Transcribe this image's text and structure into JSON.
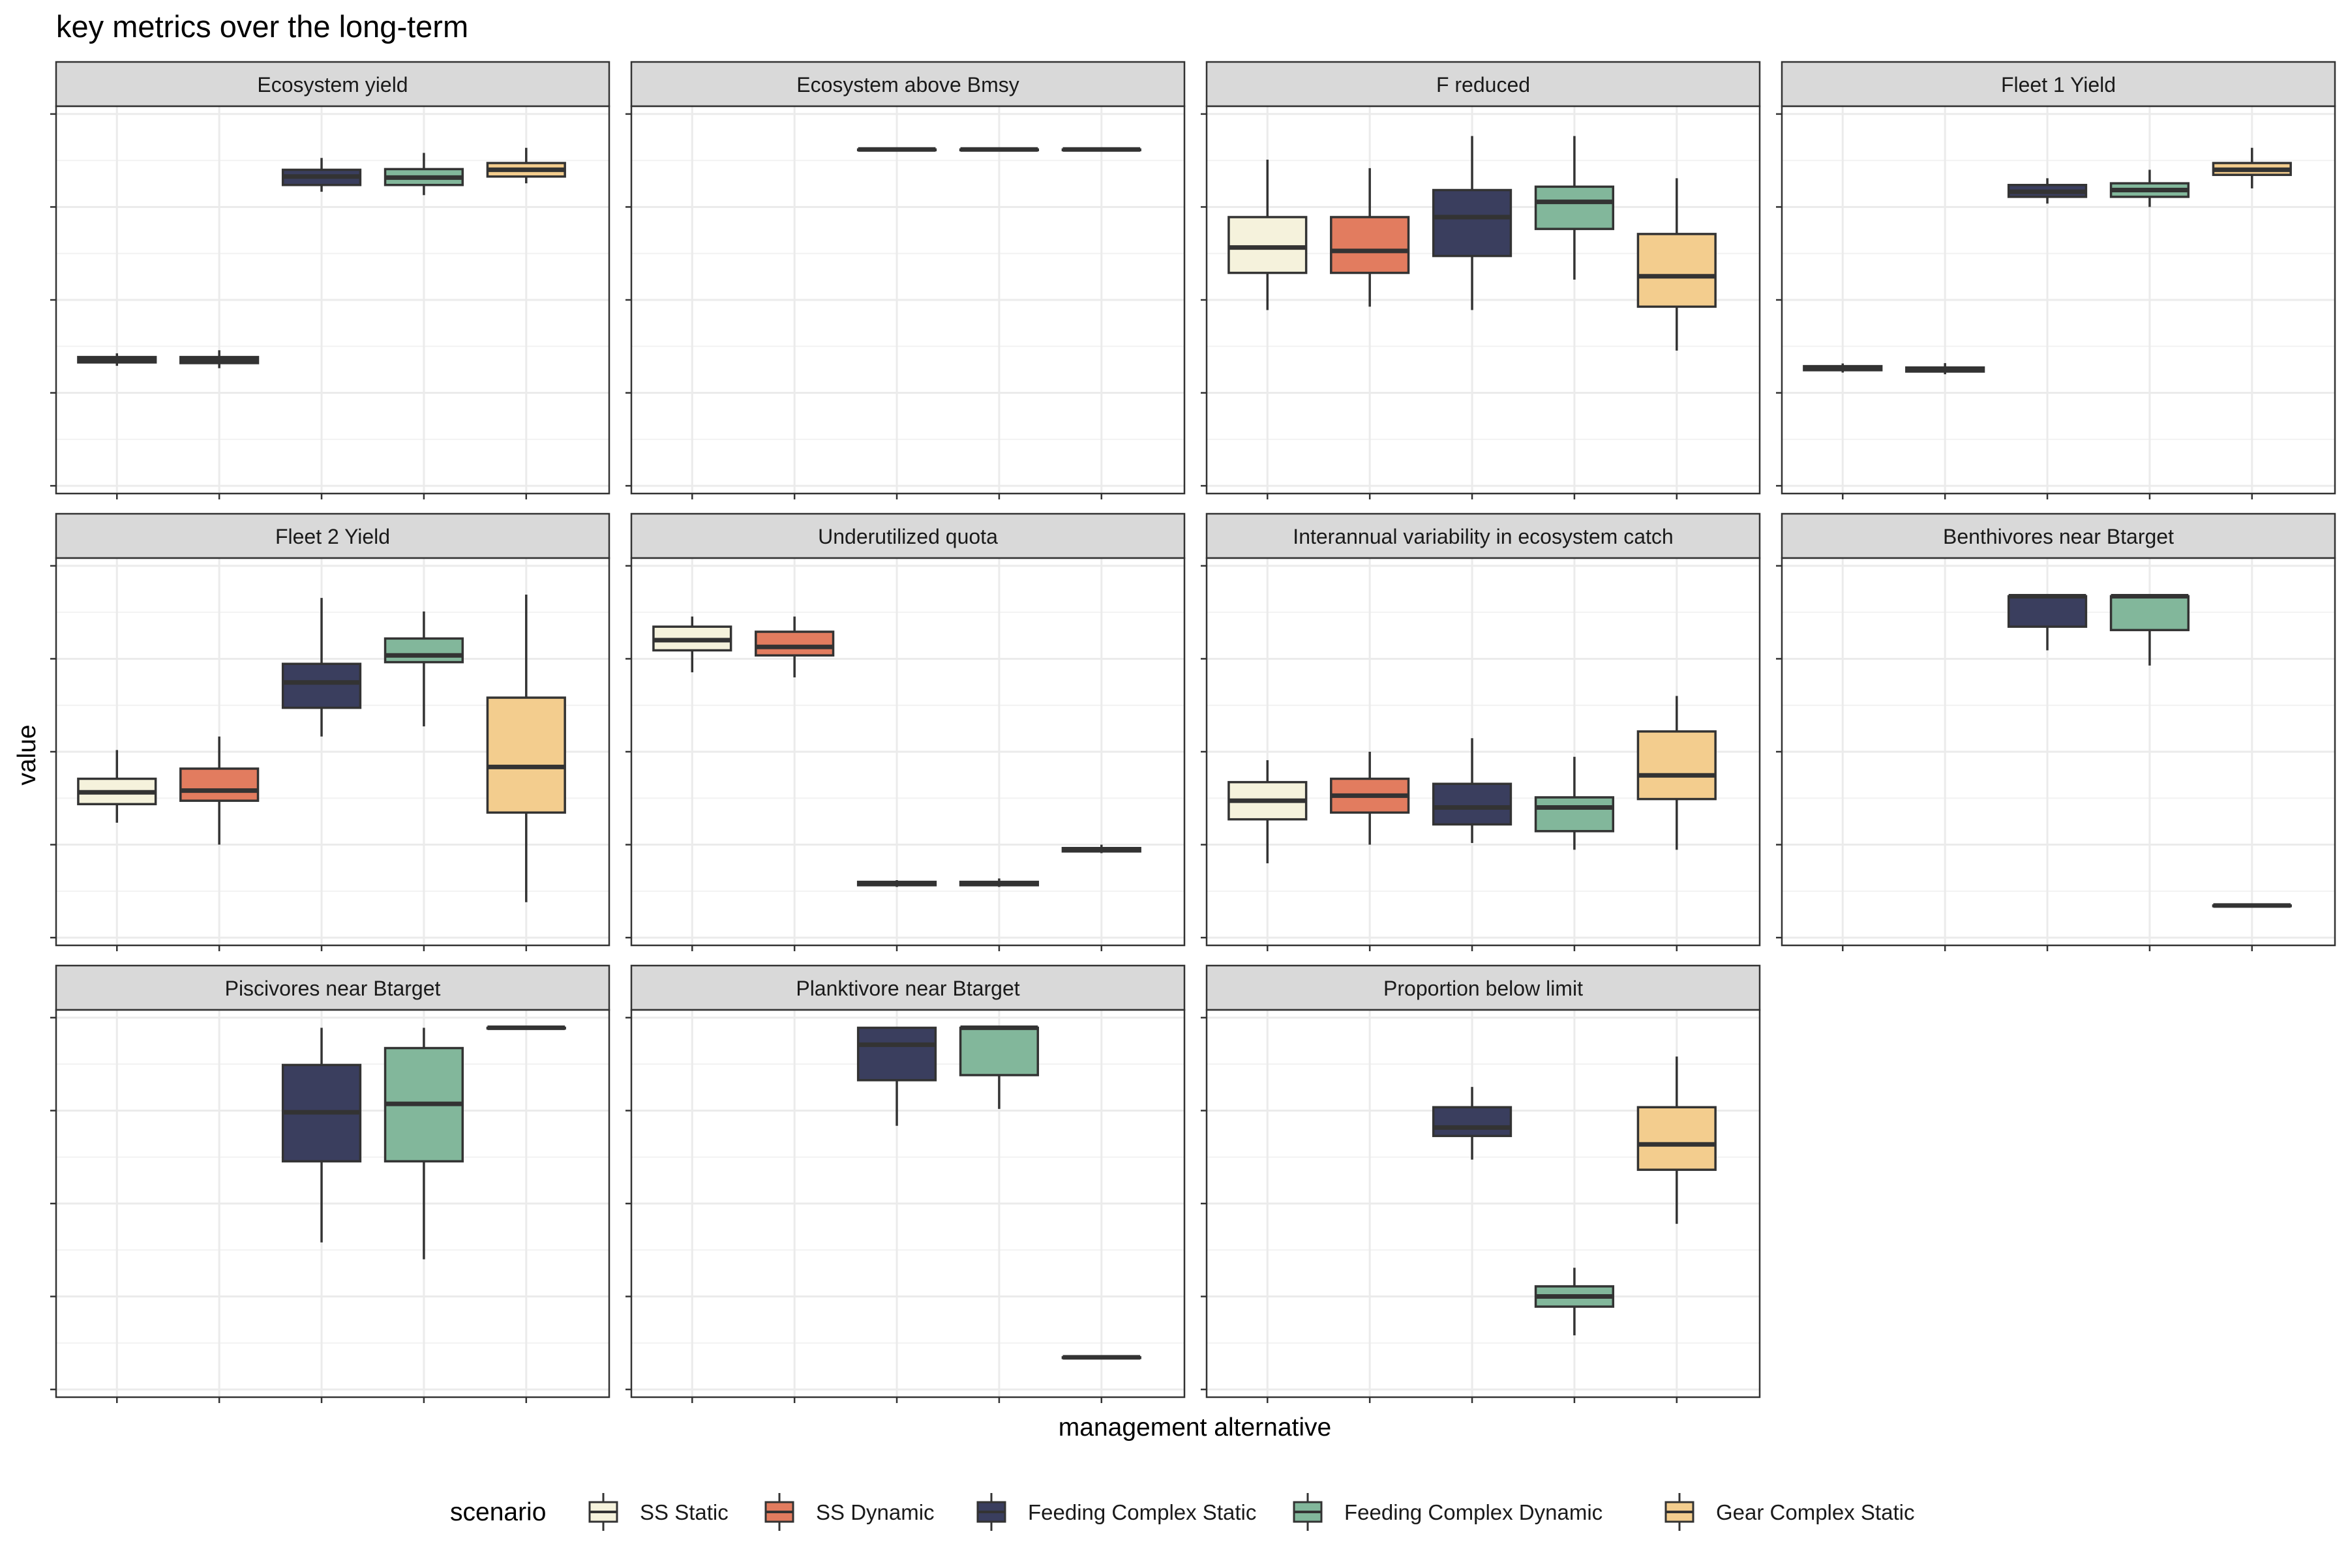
{
  "chart_data": {
    "type": "boxplot",
    "title": "key metrics over the long-term",
    "xlabel": "management alternative",
    "ylabel": "value",
    "x_tick_labels_shown": false,
    "y_tick_labels_shown": false,
    "grid": true,
    "facet_layout": {
      "nrow": 3,
      "ncol": 4
    },
    "legend": {
      "title": "scenario",
      "position": "bottom",
      "entries": [
        {
          "name": "SS Static",
          "color": "#F5F2DC"
        },
        {
          "name": "SS Dynamic",
          "color": "#E27C5F"
        },
        {
          "name": "Feeding Complex Static",
          "color": "#3A3E5E"
        },
        {
          "name": "Feeding Complex Dynamic",
          "color": "#82B79B"
        },
        {
          "name": "Gear Complex Static",
          "color": "#F3CD8E"
        }
      ]
    },
    "value_scale": "relative within each panel (0 = panel bottom, 1 = panel top); panels have no printed y tick values",
    "facets": [
      {
        "label": "Ecosystem yield",
        "boxes": [
          {
            "scenario": "SS Static",
            "min": 0.305,
            "q1": 0.315,
            "median": 0.322,
            "q3": 0.331,
            "max": 0.342
          },
          {
            "scenario": "SS Dynamic",
            "min": 0.298,
            "q1": 0.313,
            "median": 0.322,
            "q3": 0.331,
            "max": 0.351
          },
          {
            "scenario": "Feeding Complex Static",
            "min": 0.82,
            "q1": 0.84,
            "median": 0.865,
            "q3": 0.885,
            "max": 0.92
          },
          {
            "scenario": "Feeding Complex Dynamic",
            "min": 0.81,
            "q1": 0.84,
            "median": 0.862,
            "q3": 0.887,
            "max": 0.935
          },
          {
            "scenario": "Gear Complex Static",
            "min": 0.845,
            "q1": 0.865,
            "median": 0.885,
            "q3": 0.905,
            "max": 0.95
          }
        ]
      },
      {
        "label": "Ecosystem above Bmsy",
        "boxes": [
          {
            "scenario": "Feeding Complex Static",
            "min": 0.945,
            "q1": 0.945,
            "median": 0.945,
            "q3": 0.945,
            "max": 0.945
          },
          {
            "scenario": "Feeding Complex Dynamic",
            "min": 0.945,
            "q1": 0.945,
            "median": 0.945,
            "q3": 0.945,
            "max": 0.945
          },
          {
            "scenario": "Gear Complex Static",
            "min": 0.945,
            "q1": 0.945,
            "median": 0.945,
            "q3": 0.945,
            "max": 0.945
          }
        ]
      },
      {
        "label": "F reduced",
        "boxes": [
          {
            "scenario": "SS Static",
            "min": 0.47,
            "q1": 0.58,
            "median": 0.655,
            "q3": 0.745,
            "max": 0.915
          },
          {
            "scenario": "SS Dynamic",
            "min": 0.48,
            "q1": 0.58,
            "median": 0.645,
            "q3": 0.745,
            "max": 0.89
          },
          {
            "scenario": "Feeding Complex Static",
            "min": 0.47,
            "q1": 0.63,
            "median": 0.745,
            "q3": 0.825,
            "max": 0.985
          },
          {
            "scenario": "Feeding Complex Dynamic",
            "min": 0.56,
            "q1": 0.71,
            "median": 0.79,
            "q3": 0.835,
            "max": 0.985
          },
          {
            "scenario": "Gear Complex Static",
            "min": 0.35,
            "q1": 0.48,
            "median": 0.57,
            "q3": 0.695,
            "max": 0.86
          }
        ]
      },
      {
        "label": "Fleet 1 Yield",
        "boxes": [
          {
            "scenario": "SS Static",
            "min": 0.285,
            "q1": 0.292,
            "median": 0.298,
            "q3": 0.304,
            "max": 0.312
          },
          {
            "scenario": "SS Dynamic",
            "min": 0.28,
            "q1": 0.288,
            "median": 0.293,
            "q3": 0.3,
            "max": 0.313
          },
          {
            "scenario": "Feeding Complex Static",
            "min": 0.785,
            "q1": 0.805,
            "median": 0.82,
            "q3": 0.84,
            "max": 0.86
          },
          {
            "scenario": "Feeding Complex Dynamic",
            "min": 0.775,
            "q1": 0.805,
            "median": 0.825,
            "q3": 0.845,
            "max": 0.885
          },
          {
            "scenario": "Gear Complex Static",
            "min": 0.83,
            "q1": 0.87,
            "median": 0.885,
            "q3": 0.905,
            "max": 0.95
          }
        ]
      },
      {
        "label": "Fleet 2 Yield",
        "boxes": [
          {
            "scenario": "SS Static",
            "min": 0.29,
            "q1": 0.345,
            "median": 0.38,
            "q3": 0.42,
            "max": 0.505
          },
          {
            "scenario": "SS Dynamic",
            "min": 0.225,
            "q1": 0.355,
            "median": 0.385,
            "q3": 0.45,
            "max": 0.545
          },
          {
            "scenario": "Feeding Complex Static",
            "min": 0.545,
            "q1": 0.63,
            "median": 0.705,
            "q3": 0.76,
            "max": 0.955
          },
          {
            "scenario": "Feeding Complex Dynamic",
            "min": 0.575,
            "q1": 0.765,
            "median": 0.785,
            "q3": 0.835,
            "max": 0.915
          },
          {
            "scenario": "Gear Complex Static",
            "min": 0.055,
            "q1": 0.32,
            "median": 0.455,
            "q3": 0.66,
            "max": 0.965
          }
        ]
      },
      {
        "label": "Underutilized quota",
        "boxes": [
          {
            "scenario": "SS Static",
            "min": 0.735,
            "q1": 0.8,
            "median": 0.83,
            "q3": 0.87,
            "max": 0.9
          },
          {
            "scenario": "SS Dynamic",
            "min": 0.72,
            "q1": 0.785,
            "median": 0.81,
            "q3": 0.855,
            "max": 0.9
          },
          {
            "scenario": "Feeding Complex Static",
            "min": 0.1,
            "q1": 0.105,
            "median": 0.11,
            "q3": 0.115,
            "max": 0.12
          },
          {
            "scenario": "Feeding Complex Dynamic",
            "min": 0.1,
            "q1": 0.105,
            "median": 0.11,
            "q3": 0.115,
            "max": 0.125
          },
          {
            "scenario": "Gear Complex Static",
            "min": 0.2,
            "q1": 0.205,
            "median": 0.21,
            "q3": 0.215,
            "max": 0.225
          }
        ]
      },
      {
        "label": "Interannual variability in ecosystem catch",
        "boxes": [
          {
            "scenario": "SS Static",
            "min": 0.17,
            "q1": 0.3,
            "median": 0.355,
            "q3": 0.41,
            "max": 0.475
          },
          {
            "scenario": "SS Dynamic",
            "min": 0.225,
            "q1": 0.32,
            "median": 0.37,
            "q3": 0.42,
            "max": 0.5
          },
          {
            "scenario": "Feeding Complex Static",
            "min": 0.23,
            "q1": 0.285,
            "median": 0.335,
            "q3": 0.405,
            "max": 0.54
          },
          {
            "scenario": "Feeding Complex Dynamic",
            "min": 0.21,
            "q1": 0.265,
            "median": 0.335,
            "q3": 0.365,
            "max": 0.485
          },
          {
            "scenario": "Gear Complex Static",
            "min": 0.21,
            "q1": 0.36,
            "median": 0.43,
            "q3": 0.56,
            "max": 0.665
          }
        ]
      },
      {
        "label": "Benthivores near Btarget",
        "boxes": [
          {
            "scenario": "Feeding Complex Static",
            "min": 0.8,
            "q1": 0.87,
            "median": 0.96,
            "q3": 0.96,
            "max": 0.96
          },
          {
            "scenario": "Feeding Complex Dynamic",
            "min": 0.755,
            "q1": 0.86,
            "median": 0.96,
            "q3": 0.96,
            "max": 0.96
          },
          {
            "scenario": "Gear Complex Static",
            "min": 0.045,
            "q1": 0.045,
            "median": 0.045,
            "q3": 0.045,
            "max": 0.045
          }
        ]
      },
      {
        "label": "Piscivores near Btarget",
        "boxes": [
          {
            "scenario": "Feeding Complex Static",
            "min": 0.385,
            "q1": 0.625,
            "median": 0.77,
            "q3": 0.91,
            "max": 1.02
          },
          {
            "scenario": "Feeding Complex Dynamic",
            "min": 0.335,
            "q1": 0.625,
            "median": 0.795,
            "q3": 0.96,
            "max": 1.02
          },
          {
            "scenario": "Gear Complex Static",
            "min": 1.02,
            "q1": 1.02,
            "median": 1.02,
            "q3": 1.02,
            "max": 1.02
          }
        ]
      },
      {
        "label": "Planktivore near Btarget",
        "boxes": [
          {
            "scenario": "Feeding Complex Static",
            "min": 0.73,
            "q1": 0.865,
            "median": 0.97,
            "q3": 1.02,
            "max": 1.02
          },
          {
            "scenario": "Feeding Complex Dynamic",
            "min": 0.78,
            "q1": 0.88,
            "median": 1.02,
            "q3": 1.02,
            "max": 1.02
          },
          {
            "scenario": "Gear Complex Static",
            "min": 0.045,
            "q1": 0.045,
            "median": 0.045,
            "q3": 0.045,
            "max": 0.045
          }
        ]
      },
      {
        "label": "Proportion below limit",
        "boxes": [
          {
            "scenario": "Feeding Complex Static",
            "min": 0.63,
            "q1": 0.7,
            "median": 0.725,
            "q3": 0.785,
            "max": 0.845
          },
          {
            "scenario": "Feeding Complex Dynamic",
            "min": 0.11,
            "q1": 0.195,
            "median": 0.225,
            "q3": 0.255,
            "max": 0.31
          },
          {
            "scenario": "Gear Complex Static",
            "min": 0.44,
            "q1": 0.6,
            "median": 0.675,
            "q3": 0.785,
            "max": 0.935
          }
        ]
      }
    ]
  }
}
